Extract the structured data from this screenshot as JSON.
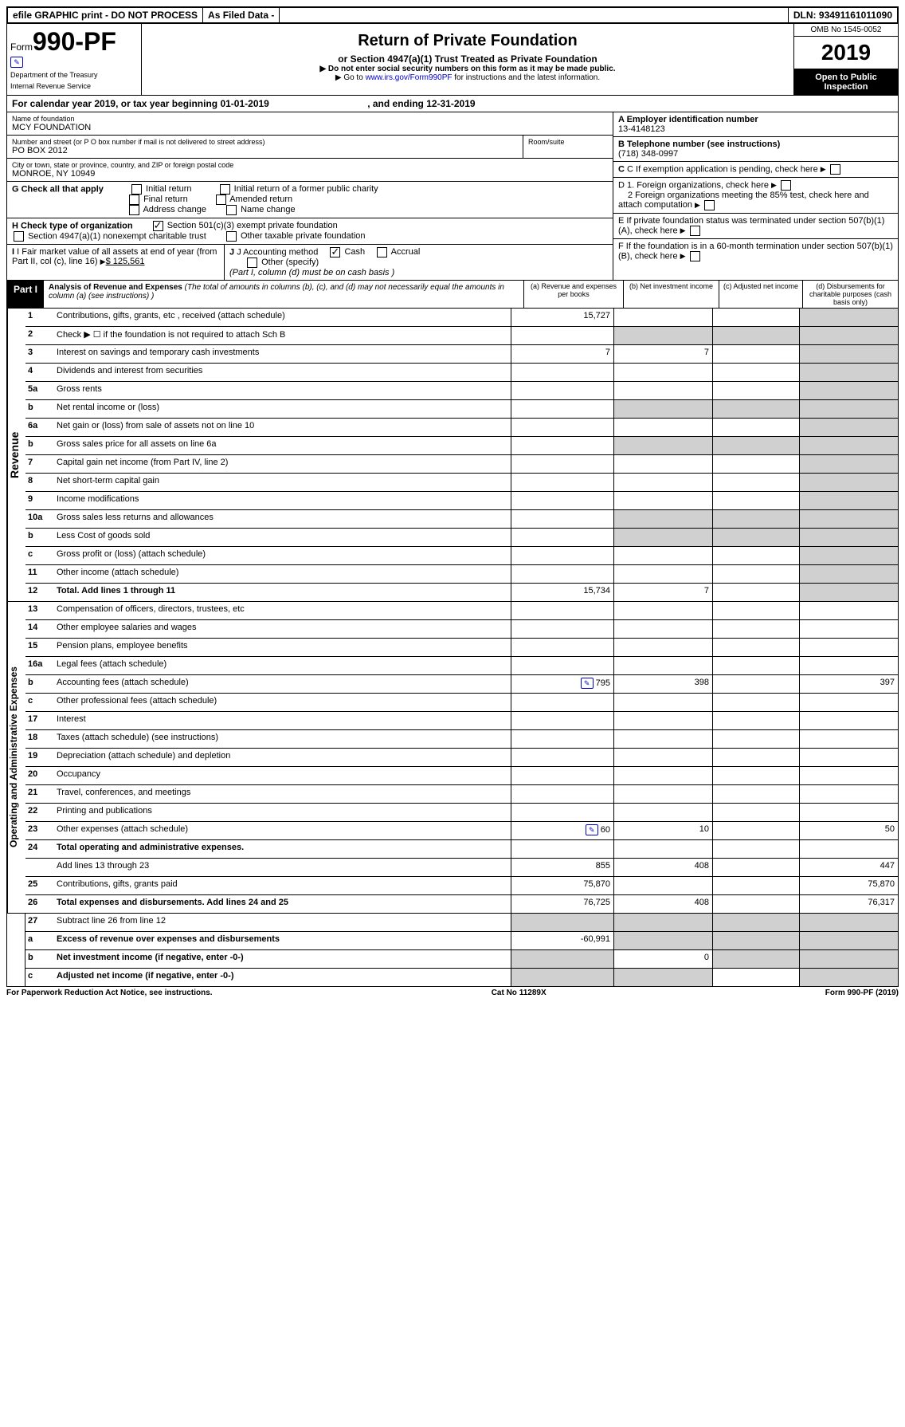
{
  "topbar": {
    "efile": "efile GRAPHIC print - DO NOT PROCESS",
    "filed": "As Filed Data -",
    "dln_label": "DLN:",
    "dln": "93491161011090"
  },
  "header": {
    "form_prefix": "Form",
    "form_number": "990-PF",
    "dept1": "Department of the Treasury",
    "dept2": "Internal Revenue Service",
    "title": "Return of Private Foundation",
    "subtitle": "or Section 4947(a)(1) Trust Treated as Private Foundation",
    "instr1": "▶ Do not enter social security numbers on this form as it may be made public.",
    "instr2_pre": "▶ Go to ",
    "instr2_link": "www.irs.gov/Form990PF",
    "instr2_post": " for instructions and the latest information.",
    "omb": "OMB No 1545-0052",
    "year": "2019",
    "open": "Open to Public Inspection"
  },
  "calyear": {
    "text_pre": "For calendar year 2019, or tax year beginning ",
    "begin": "01-01-2019",
    "mid": " , and ending ",
    "end": "12-31-2019"
  },
  "info": {
    "name_label": "Name of foundation",
    "name": "MCY FOUNDATION",
    "addr_label": "Number and street (or P O  box number if mail is not delivered to street address)",
    "addr": "PO BOX 2012",
    "room_label": "Room/suite",
    "city_label": "City or town, state or province, country, and ZIP or foreign postal code",
    "city": "MONROE, NY  10949",
    "a_label": "A Employer identification number",
    "a_value": "13-4148123",
    "b_label": "B Telephone number (see instructions)",
    "b_value": "(718) 348-0997",
    "c_label": "C If exemption application is pending, check here",
    "d1": "D 1. Foreign organizations, check here",
    "d2": "2 Foreign organizations meeting the 85% test, check here and attach computation",
    "e": "E If private foundation status was terminated under section 507(b)(1)(A), check here",
    "f": "F If the foundation is in a 60-month termination under section 507(b)(1)(B), check here"
  },
  "g": {
    "label": "G Check all that apply",
    "opts": [
      "Initial return",
      "Initial return of a former public charity",
      "Final return",
      "Amended return",
      "Address change",
      "Name change"
    ]
  },
  "h": {
    "label": "H Check type of organization",
    "opt1": "Section 501(c)(3) exempt private foundation",
    "opt2": "Section 4947(a)(1) nonexempt charitable trust",
    "opt3": "Other taxable private foundation"
  },
  "i": {
    "label": "I Fair market value of all assets at end of year (from Part II, col  (c), line 16)",
    "value": "$ 125,561"
  },
  "j": {
    "label": "J Accounting method",
    "cash": "Cash",
    "accrual": "Accrual",
    "other": "Other (specify)",
    "note": "(Part I, column (d) must be on cash basis )"
  },
  "part1": {
    "label": "Part I",
    "title": "Analysis of Revenue and Expenses",
    "desc": " (The total of amounts in columns (b), (c), and (d) may not necessarily equal the amounts in column (a) (see instructions) )",
    "col_a": "(a) Revenue and expenses per books",
    "col_b": "(b) Net investment income",
    "col_c": "(c) Adjusted net income",
    "col_d": "(d) Disbursements for charitable purposes (cash basis only)"
  },
  "sections": {
    "revenue": "Revenue",
    "opex": "Operating and Administrative Expenses"
  },
  "rows": {
    "r1": {
      "n": "1",
      "l": "Contributions, gifts, grants, etc , received (attach schedule)",
      "a": "15,727"
    },
    "r2": {
      "n": "2",
      "l": "Check ▶ ☐ if the foundation is not required to attach Sch  B"
    },
    "r3": {
      "n": "3",
      "l": "Interest on savings and temporary cash investments",
      "a": "7",
      "b": "7"
    },
    "r4": {
      "n": "4",
      "l": "Dividends and interest from securities"
    },
    "r5a": {
      "n": "5a",
      "l": "Gross rents"
    },
    "r5b": {
      "n": "b",
      "l": "Net rental income or (loss)"
    },
    "r6a": {
      "n": "6a",
      "l": "Net gain or (loss) from sale of assets not on line 10"
    },
    "r6b": {
      "n": "b",
      "l": "Gross sales price for all assets on line 6a"
    },
    "r7": {
      "n": "7",
      "l": "Capital gain net income (from Part IV, line 2)"
    },
    "r8": {
      "n": "8",
      "l": "Net short-term capital gain"
    },
    "r9": {
      "n": "9",
      "l": "Income modifications"
    },
    "r10a": {
      "n": "10a",
      "l": "Gross sales less returns and allowances"
    },
    "r10b": {
      "n": "b",
      "l": "Less  Cost of goods sold"
    },
    "r10c": {
      "n": "c",
      "l": "Gross profit or (loss) (attach schedule)"
    },
    "r11": {
      "n": "11",
      "l": "Other income (attach schedule)"
    },
    "r12": {
      "n": "12",
      "l": "Total. Add lines 1 through 11",
      "a": "15,734",
      "b": "7",
      "bold": true
    },
    "r13": {
      "n": "13",
      "l": "Compensation of officers, directors, trustees, etc"
    },
    "r14": {
      "n": "14",
      "l": "Other employee salaries and wages"
    },
    "r15": {
      "n": "15",
      "l": "Pension plans, employee benefits"
    },
    "r16a": {
      "n": "16a",
      "l": "Legal fees (attach schedule)"
    },
    "r16b": {
      "n": "b",
      "l": "Accounting fees (attach schedule)",
      "a": "795",
      "b": "398",
      "d": "397",
      "icon": true
    },
    "r16c": {
      "n": "c",
      "l": "Other professional fees (attach schedule)"
    },
    "r17": {
      "n": "17",
      "l": "Interest"
    },
    "r18": {
      "n": "18",
      "l": "Taxes (attach schedule) (see instructions)"
    },
    "r19": {
      "n": "19",
      "l": "Depreciation (attach schedule) and depletion"
    },
    "r20": {
      "n": "20",
      "l": "Occupancy"
    },
    "r21": {
      "n": "21",
      "l": "Travel, conferences, and meetings"
    },
    "r22": {
      "n": "22",
      "l": "Printing and publications"
    },
    "r23": {
      "n": "23",
      "l": "Other expenses (attach schedule)",
      "a": "60",
      "b": "10",
      "d": "50",
      "icon": true
    },
    "r24": {
      "n": "24",
      "l": "Total operating and administrative expenses.",
      "bold": true
    },
    "r24b": {
      "n": "",
      "l": "Add lines 13 through 23",
      "a": "855",
      "b": "408",
      "d": "447"
    },
    "r25": {
      "n": "25",
      "l": "Contributions, gifts, grants paid",
      "a": "75,870",
      "d": "75,870"
    },
    "r26": {
      "n": "26",
      "l": "Total expenses and disbursements. Add lines 24 and 25",
      "a": "76,725",
      "b": "408",
      "d": "76,317",
      "bold": true
    },
    "r27": {
      "n": "27",
      "l": "Subtract line 26 from line 12"
    },
    "r27a": {
      "n": "a",
      "l": "Excess of revenue over expenses and disbursements",
      "a": "-60,991",
      "bold": true
    },
    "r27b": {
      "n": "b",
      "l": "Net investment income (if negative, enter -0-)",
      "b": "0",
      "bold": true
    },
    "r27c": {
      "n": "c",
      "l": "Adjusted net income (if negative, enter -0-)",
      "bold": true
    }
  },
  "footer": {
    "left": "For Paperwork Reduction Act Notice, see instructions.",
    "center": "Cat No  11289X",
    "right": "Form 990-PF (2019)"
  }
}
